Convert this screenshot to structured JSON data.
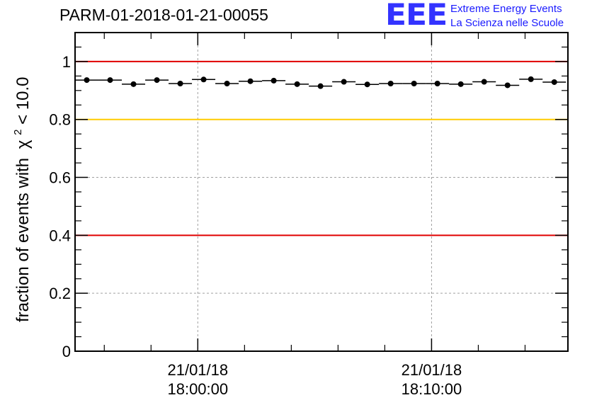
{
  "header": {
    "title": "PARM-01-2018-01-21-00055",
    "logo_mark": "EEE",
    "logo_line1": "Extreme Energy Events",
    "logo_line2": "La Scienza nelle Scuole"
  },
  "colors": {
    "red_threshold": "#e00000",
    "yellow_threshold": "#ffcc00",
    "grid": "#a0a0a0",
    "logo": "#3333ff"
  },
  "chart_data": {
    "type": "scatter",
    "ylabel": "fraction of events with",
    "ylabel_symbol": "χ",
    "ylabel_sup": "2",
    "ylabel_tail": " < 10.0",
    "ylim": [
      0,
      1.1
    ],
    "yticks": [
      0,
      0.2,
      0.4,
      0.6,
      0.8,
      1
    ],
    "ytick_labels": [
      "0",
      "0.2",
      "0.4",
      "0.6",
      "0.8",
      "1"
    ],
    "xlim": [
      "21/01/18 17:54:45",
      "21/01/18 18:15:50"
    ],
    "xticks": [
      {
        "t": "21/01/18 18:00:00",
        "date": "21/01/18",
        "time": "18:00:00"
      },
      {
        "t": "21/01/18 18:10:00",
        "date": "21/01/18",
        "time": "18:10:00"
      }
    ],
    "grid": true,
    "reference_lines": [
      {
        "y": 1.0,
        "color": "red"
      },
      {
        "y": 0.8,
        "color": "yellow"
      },
      {
        "y": 0.4,
        "color": "red"
      }
    ],
    "series": [
      {
        "x": [
          "21/01/18 17:55:15",
          "21/01/18 17:56:15",
          "21/01/18 17:57:15",
          "21/01/18 17:58:15",
          "21/01/18 17:59:15",
          "21/01/18 18:00:15",
          "21/01/18 18:01:15",
          "21/01/18 18:02:15",
          "21/01/18 18:03:15",
          "21/01/18 18:04:15",
          "21/01/18 18:05:15",
          "21/01/18 18:06:15",
          "21/01/18 18:07:15",
          "21/01/18 18:08:15",
          "21/01/18 18:09:15",
          "21/01/18 18:10:15",
          "21/01/18 18:11:15",
          "21/01/18 18:12:15",
          "21/01/18 18:13:15",
          "21/01/18 18:14:15",
          "21/01/18 18:15:15"
        ],
        "y": [
          0.936,
          0.936,
          0.922,
          0.936,
          0.924,
          0.938,
          0.924,
          0.932,
          0.934,
          0.922,
          0.915,
          0.93,
          0.921,
          0.924,
          0.924,
          0.924,
          0.922,
          0.93,
          0.918,
          0.939,
          0.929
        ]
      }
    ]
  }
}
